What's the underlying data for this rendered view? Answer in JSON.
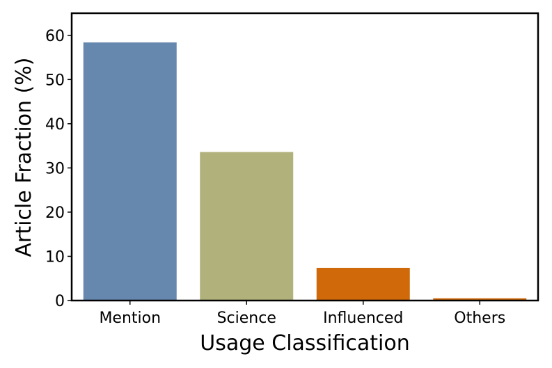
{
  "chart_data": {
    "type": "bar",
    "title": "",
    "xlabel": "Usage Classification",
    "ylabel": "Article Fraction (%)",
    "categories": [
      "Mention",
      "Science",
      "Influenced",
      "Others"
    ],
    "values": [
      58.4,
      33.6,
      7.4,
      0.5
    ],
    "colors": [
      "#6788ae",
      "#b1b17c",
      "#d0690a",
      "#d0690a"
    ],
    "ylim": [
      0,
      65
    ],
    "yticks": [
      0,
      10,
      20,
      30,
      40,
      50,
      60
    ],
    "grid": false,
    "legend": "none"
  }
}
